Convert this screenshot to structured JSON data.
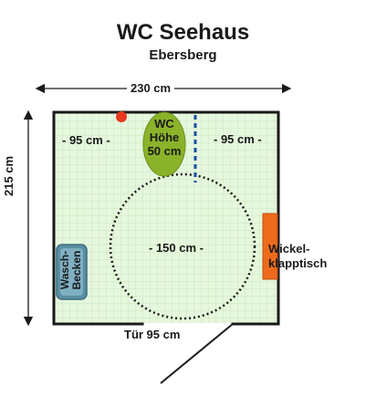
{
  "title": "WC Seehaus",
  "subtitle": "Ebersberg",
  "dimensions": {
    "width": "230 cm",
    "height": "215 cm",
    "left_clearance": "- 95 cm -",
    "right_clearance": "- 95 cm -",
    "turning_circle": "- 150 cm -",
    "door": "Tür 95 cm"
  },
  "fixtures": {
    "wc": {
      "line1": "WC",
      "line2": "Höhe",
      "line3": "50 cm"
    },
    "sink": {
      "line1": "Wasch-",
      "line2": "Becken"
    },
    "changing_table": {
      "line1": "Wickel-",
      "line2": "klapptisch"
    }
  },
  "colors": {
    "floor": "#e6f7de",
    "grid": "#c6e8bb",
    "wc": "#8ab32a",
    "sink": "#5a8fa3",
    "changing_table": "#ee6a1c",
    "alarm_button": "#e8381f",
    "grab_bar": "#1f4fa8"
  }
}
